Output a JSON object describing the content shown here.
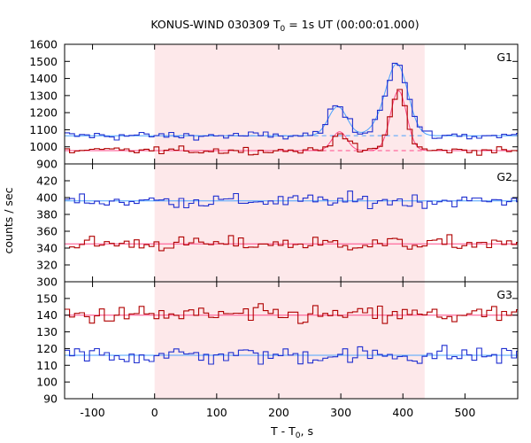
{
  "chart_data": {
    "type": "line",
    "title_prefix": "KONUS-WIND 030309 T",
    "title_sub": "0",
    "title_suffix": " = 1s UT (00:00:01.000)",
    "xlabel_prefix": "T - T",
    "xlabel_sub": "0",
    "xlabel_suffix": ", s",
    "ylabel": "counts / sec",
    "xlim": [
      -145,
      585
    ],
    "x_ticks": [
      "-100",
      "0",
      "100",
      "200",
      "300",
      "400",
      "500"
    ],
    "x_tick_values": [
      -100,
      0,
      100,
      200,
      300,
      400,
      500
    ],
    "shaded_interval": [
      0,
      435
    ],
    "shade_color": "#fde8ea",
    "bin_width": 8,
    "panels": [
      {
        "name": "G1",
        "ylim": [
          900,
          1600
        ],
        "y_ticks": [
          900,
          1000,
          1100,
          1200,
          1300,
          1400,
          1500,
          1600
        ],
        "series": [
          {
            "color": "#1f2fd0",
            "fit_color": "#4aa3ff",
            "background": 1065,
            "noise": 18,
            "pulses": [
              {
                "center": 295,
                "amplitude": 170,
                "width": 15
              },
              {
                "center": 392,
                "amplitude": 370,
                "width": 17
              },
              {
                "center": 372,
                "amplitude": 80,
                "width": 20
              }
            ]
          },
          {
            "color": "#b00000",
            "fit_color": "#ff4a8a",
            "background": 978,
            "noise": 15,
            "pulses": [
              {
                "center": 298,
                "amplitude": 110,
                "width": 12
              },
              {
                "center": 393,
                "amplitude": 350,
                "width": 13
              }
            ]
          }
        ]
      },
      {
        "name": "G2",
        "ylim": [
          300,
          440
        ],
        "y_ticks": [
          300,
          320,
          340,
          360,
          380,
          400,
          420
        ],
        "series": [
          {
            "color": "#1f2fd0",
            "fit_color": "#4aa3ff",
            "background": 396,
            "noise": 6,
            "pulses": []
          },
          {
            "color": "#b00000",
            "fit_color": "#ff4a8a",
            "background": 345,
            "noise": 6,
            "pulses": []
          }
        ]
      },
      {
        "name": "G3",
        "ylim": [
          90,
          160
        ],
        "y_ticks": [
          90,
          100,
          110,
          120,
          130,
          140,
          150
        ],
        "series": [
          {
            "color": "#b00000",
            "fit_color": "#ff4a8a",
            "background": 140,
            "noise": 4,
            "pulses": []
          },
          {
            "color": "#1f2fd0",
            "fit_color": "#4aa3ff",
            "background": 116,
            "noise": 4,
            "pulses": []
          }
        ]
      }
    ]
  }
}
